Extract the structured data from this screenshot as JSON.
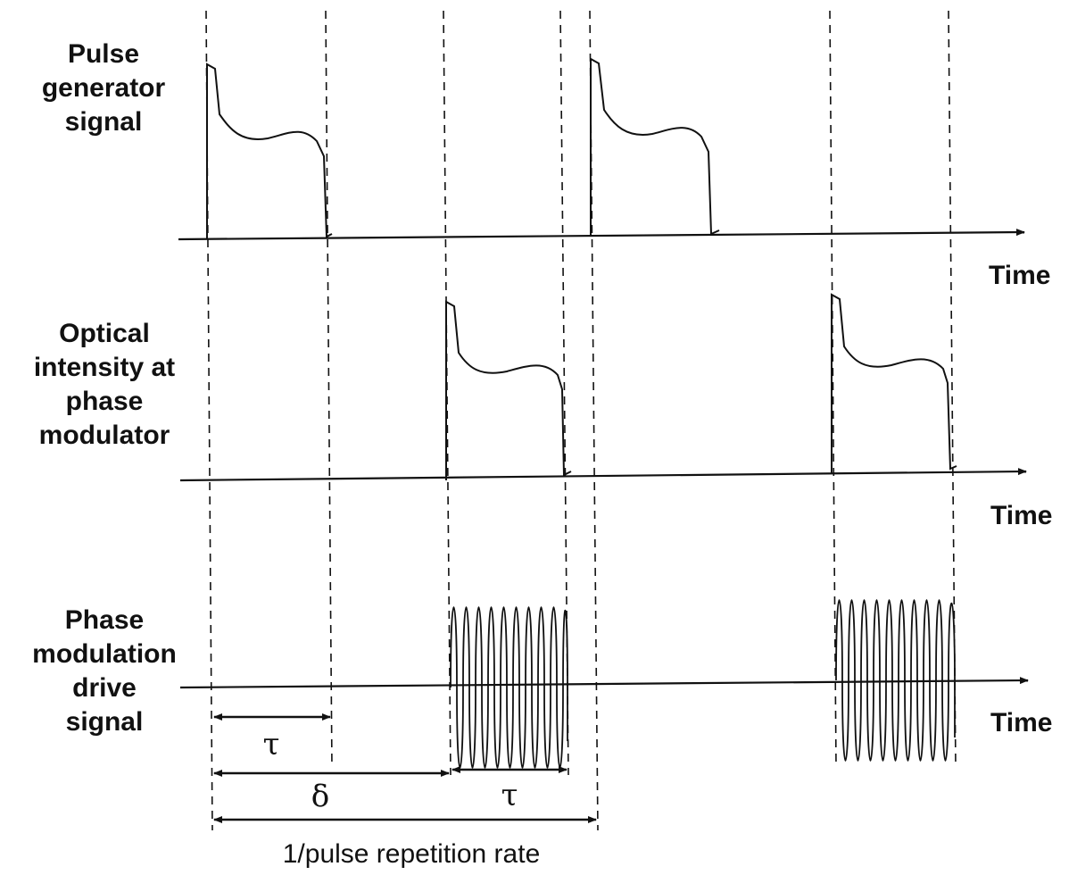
{
  "rows": [
    {
      "label_lines": [
        "Pulse",
        "generator",
        "signal"
      ],
      "axis_label": "Time"
    },
    {
      "label_lines": [
        "Optical",
        "intensity at",
        "phase",
        "modulator"
      ],
      "axis_label": "Time"
    },
    {
      "label_lines": [
        "Phase",
        "modulation",
        "drive",
        "signal"
      ],
      "axis_label": "Time"
    }
  ],
  "intervals": {
    "tau_1": "τ",
    "delta": "δ",
    "tau_2": "τ",
    "period": "1/pulse repetition rate"
  },
  "colors": {
    "ink": "#111111",
    "background": "#ffffff"
  }
}
